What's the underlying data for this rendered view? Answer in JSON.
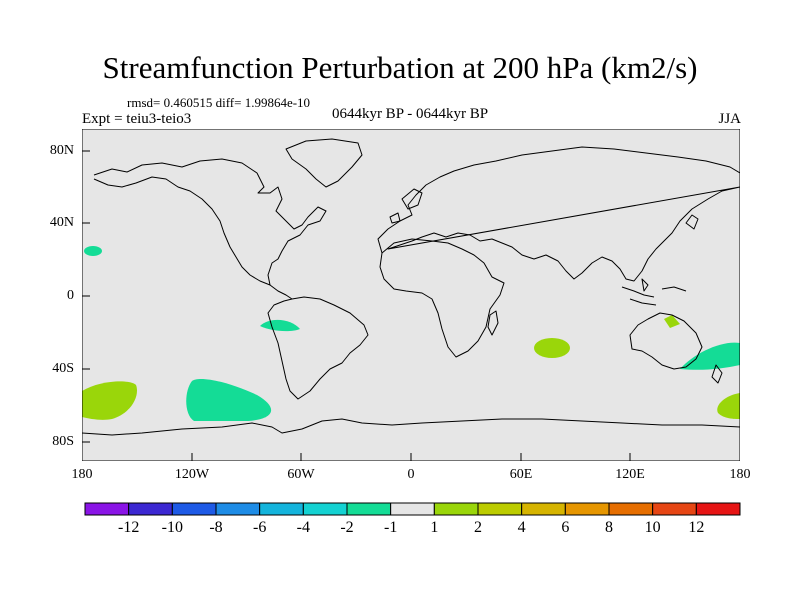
{
  "header": {
    "title": "Streamfunction Perturbation at 200 hPa (km2/s)",
    "stats": "rmsd= 0.460515 diff= 1.99864e-10",
    "expt": "Expt = teiu3-teio3",
    "period": "0644kyr BP - 0644kyr BP",
    "season": "JJA"
  },
  "axes": {
    "lat_labels": [
      "80N",
      "40N",
      "0",
      "40S",
      "80S"
    ],
    "lon_labels": [
      "180",
      "120W",
      "60W",
      "0",
      "60E",
      "120E",
      "180"
    ]
  },
  "colorbar": {
    "labels": [
      "-12",
      "-10",
      "-8",
      "-6",
      "-4",
      "-2",
      "-1",
      "1",
      "2",
      "4",
      "6",
      "8",
      "10",
      "12"
    ],
    "colors": [
      "#8a14e6",
      "#3c28d2",
      "#1e5ae6",
      "#1e8ce6",
      "#14b4dc",
      "#14d2d2",
      "#14dc96",
      "#e6e6e6",
      "#9ad60a",
      "#bccc00",
      "#d6b400",
      "#e69600",
      "#e66e00",
      "#e64614",
      "#e61414"
    ]
  },
  "map": {
    "background": "#e6e6e6",
    "features": [
      {
        "name": "n-pacific-patch",
        "color": "#14dc96"
      },
      {
        "name": "s-america-patch",
        "color": "#14dc96"
      },
      {
        "name": "s-pacific-patch",
        "color": "#14dc96"
      },
      {
        "name": "far-s-pacific-patch",
        "color": "#9ad60a"
      },
      {
        "name": "indian-ocean-patch",
        "color": "#9ad60a"
      },
      {
        "name": "australia-patch",
        "color": "#9ad60a"
      },
      {
        "name": "tasman-patch",
        "color": "#14dc96"
      },
      {
        "name": "dateline-patch",
        "color": "#9ad60a"
      }
    ]
  }
}
